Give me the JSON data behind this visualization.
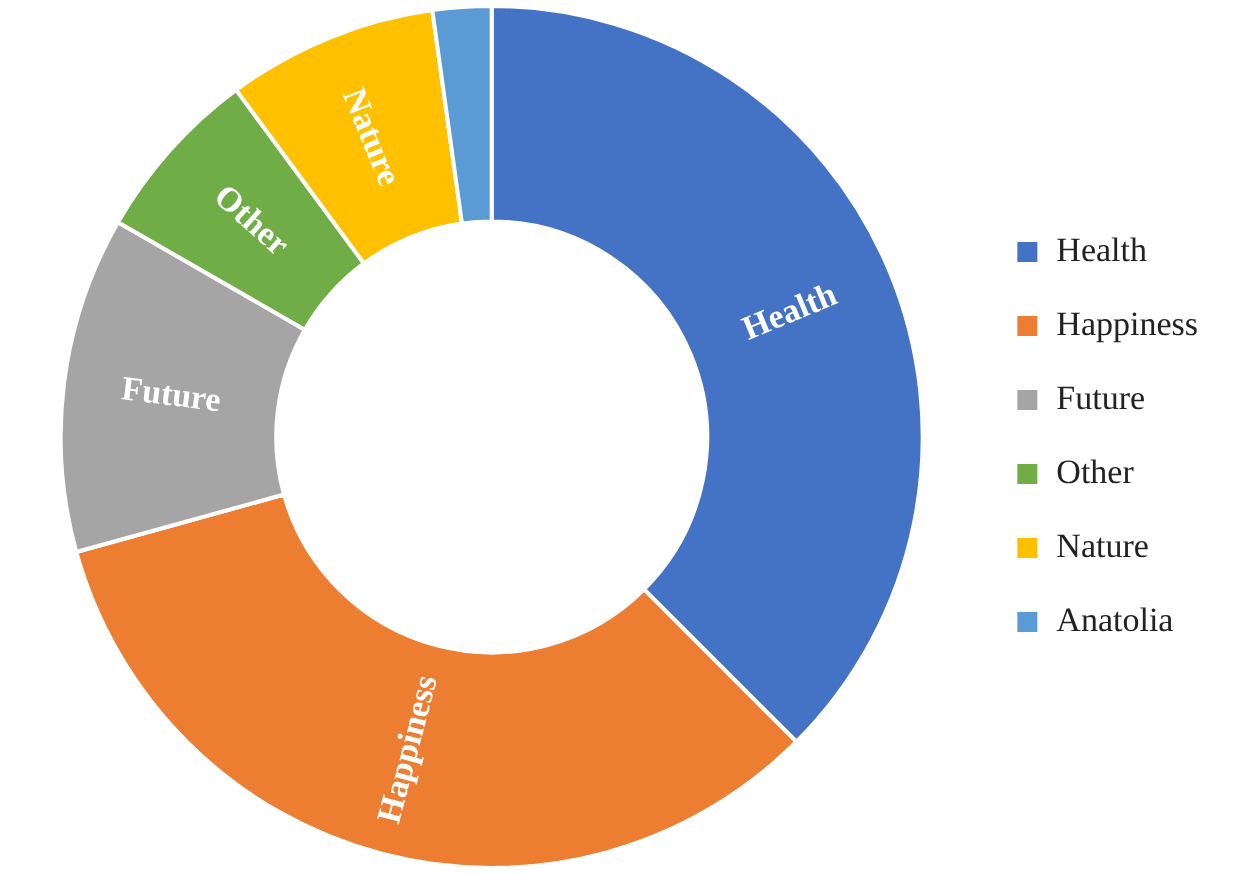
{
  "chart_data": {
    "type": "donut",
    "categories": [
      "Health",
      "Happiness",
      "Future",
      "Other",
      "Nature",
      "Anatolia"
    ],
    "values": [
      37.5,
      33.2,
      12.6,
      6.6,
      7.9,
      2.2
    ],
    "colors": [
      "#4472c4",
      "#ed7d31",
      "#a5a5a5",
      "#70ad47",
      "#ffc000",
      "#5b9bd5"
    ],
    "legend": "right"
  }
}
